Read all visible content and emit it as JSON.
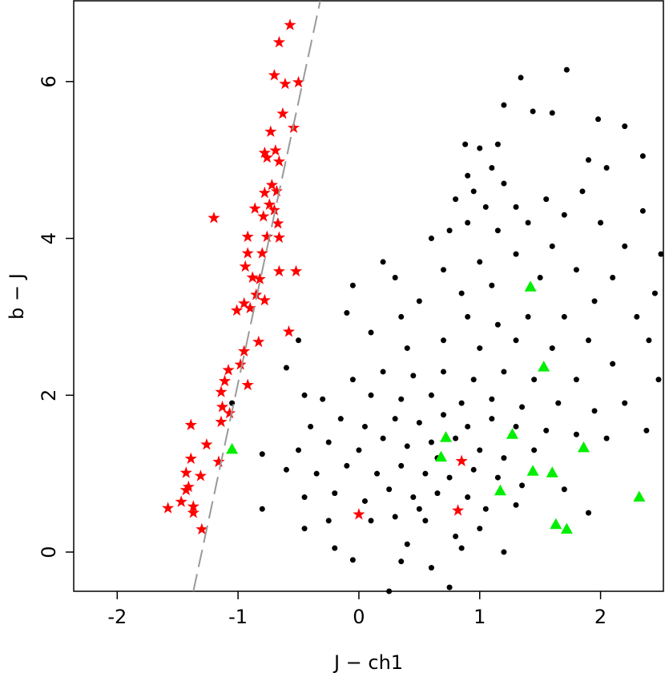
{
  "chart_data": {
    "type": "scatter",
    "x_label": "J − ch1",
    "y_label": "b − J",
    "xlim": [
      -2.36,
      2.52
    ],
    "ylim": [
      -0.5,
      7.03
    ],
    "xticks": [
      -2,
      -1,
      0,
      1,
      2
    ],
    "yticks": [
      0,
      2,
      4,
      6
    ],
    "series": [
      {
        "marker": "circle",
        "color": "#000000",
        "x": [
          1.72,
          1.34,
          1.2,
          1.44,
          1.98,
          2.2,
          1.6,
          2.35,
          0.88,
          1.0,
          1.15,
          1.9,
          2.05,
          2.35,
          2.5,
          2.45,
          2.3,
          2.4,
          2.48,
          2.38,
          0.2,
          0.3,
          -0.05,
          -0.1,
          -0.5,
          -0.6,
          -0.45,
          -0.8,
          -0.8,
          -1.05,
          0.25,
          0.75,
          0.6,
          0.35,
          0.9,
          1.1,
          0.95,
          1.05,
          0.8,
          1.2,
          1.3,
          0.75,
          0.6,
          0.9,
          1.15,
          1.4,
          1.55,
          1.7,
          1.85,
          2.0,
          1.6,
          1.3,
          1.0,
          0.7,
          0.85,
          1.1,
          1.5,
          1.8,
          2.1,
          2.2,
          1.95,
          1.7,
          1.4,
          1.15,
          0.9,
          0.5,
          0.35,
          0.1,
          0.4,
          0.7,
          1.0,
          1.3,
          1.6,
          1.9,
          2.1,
          1.8,
          1.45,
          1.2,
          0.95,
          0.7,
          0.45,
          0.2,
          -0.05,
          -0.3,
          0.1,
          0.35,
          0.6,
          0.85,
          1.1,
          1.35,
          1.65,
          1.95,
          2.2,
          -0.4,
          -0.15,
          0.05,
          0.3,
          0.5,
          0.7,
          0.9,
          1.1,
          1.3,
          1.55,
          1.8,
          2.05,
          -0.5,
          -0.25,
          0.0,
          0.2,
          0.4,
          0.6,
          0.8,
          1.0,
          1.2,
          1.45,
          -0.6,
          -0.35,
          -0.1,
          0.15,
          0.35,
          0.55,
          0.75,
          0.95,
          1.15,
          1.35,
          1.7,
          -0.45,
          -0.2,
          0.05,
          0.25,
          0.45,
          0.65,
          0.9,
          1.05,
          1.3,
          1.9,
          -0.45,
          -0.25,
          0.1,
          0.3,
          0.55,
          0.8,
          1.0,
          -0.2,
          0.4,
          0.85,
          1.2,
          -0.05,
          0.5,
          0.65
        ],
        "y": [
          6.15,
          6.05,
          5.7,
          5.62,
          5.52,
          5.43,
          5.6,
          5.05,
          5.2,
          5.15,
          5.2,
          5.0,
          4.9,
          4.35,
          3.8,
          3.3,
          3.0,
          2.7,
          2.2,
          1.55,
          3.7,
          3.5,
          3.4,
          3.05,
          2.7,
          2.35,
          2.0,
          0.55,
          1.25,
          1.9,
          -0.5,
          -0.45,
          -0.2,
          -0.12,
          4.8,
          4.9,
          4.6,
          4.4,
          4.5,
          4.7,
          4.4,
          4.1,
          4.0,
          4.2,
          4.1,
          4.2,
          4.5,
          4.3,
          4.6,
          4.2,
          3.9,
          3.8,
          3.7,
          3.6,
          3.3,
          3.4,
          3.5,
          3.6,
          3.5,
          3.9,
          3.2,
          3.0,
          3.0,
          2.9,
          3.0,
          3.2,
          3.0,
          2.8,
          2.6,
          2.7,
          2.6,
          2.7,
          2.6,
          2.7,
          2.4,
          2.2,
          2.2,
          2.3,
          2.2,
          2.3,
          2.25,
          2.3,
          2.2,
          1.95,
          2.0,
          1.95,
          2.0,
          1.9,
          1.95,
          1.85,
          1.9,
          1.8,
          1.9,
          1.6,
          1.7,
          1.6,
          1.7,
          1.65,
          1.75,
          1.6,
          1.7,
          1.6,
          1.55,
          1.5,
          1.45,
          1.3,
          1.4,
          1.3,
          1.45,
          1.35,
          1.4,
          1.45,
          1.3,
          1.2,
          1.3,
          1.05,
          1.0,
          1.1,
          1.0,
          1.1,
          1.0,
          0.95,
          1.05,
          0.95,
          0.85,
          0.8,
          0.7,
          0.75,
          0.65,
          0.8,
          0.7,
          0.75,
          0.7,
          0.55,
          0.6,
          0.5,
          0.3,
          0.4,
          0.4,
          0.45,
          0.4,
          0.2,
          0.3,
          0.05,
          0.1,
          0.05,
          0.0,
          -0.1,
          0.55,
          1.2
        ]
      },
      {
        "marker": "star",
        "color": "#ff0000",
        "x": [
          -0.57,
          -0.66,
          -0.7,
          -0.5,
          -0.61,
          -0.63,
          -0.54,
          -0.73,
          -0.69,
          -0.78,
          -0.66,
          -0.76,
          -0.72,
          -0.68,
          -0.78,
          -0.74,
          -0.86,
          -0.7,
          -0.79,
          -0.67,
          -1.2,
          -0.92,
          -0.76,
          -0.66,
          -0.92,
          -0.8,
          -0.66,
          -0.52,
          -0.94,
          -0.88,
          -0.82,
          -0.85,
          -0.95,
          -0.78,
          -1.01,
          -0.9,
          -0.58,
          -0.83,
          -0.95,
          -0.98,
          -1.08,
          -1.11,
          -0.92,
          -1.14,
          -1.13,
          -1.07,
          -1.14,
          -1.39,
          -1.26,
          -1.16,
          -1.39,
          -1.43,
          -1.31,
          -1.41,
          -1.43,
          -1.47,
          -1.37,
          -1.58,
          -1.37,
          -1.3,
          0.0,
          0.82,
          0.85
        ],
        "y": [
          6.72,
          6.5,
          6.08,
          5.99,
          5.97,
          5.59,
          5.41,
          5.36,
          5.12,
          5.09,
          4.98,
          5.03,
          4.68,
          4.6,
          4.58,
          4.43,
          4.38,
          4.36,
          4.28,
          4.19,
          4.26,
          4.02,
          4.02,
          4.01,
          3.81,
          3.81,
          3.58,
          3.58,
          3.64,
          3.5,
          3.48,
          3.28,
          3.17,
          3.21,
          3.08,
          3.11,
          2.81,
          2.68,
          2.56,
          2.39,
          2.32,
          2.18,
          2.13,
          2.04,
          1.85,
          1.77,
          1.66,
          1.62,
          1.37,
          1.15,
          1.19,
          1.01,
          0.97,
          0.83,
          0.79,
          0.64,
          0.58,
          0.56,
          0.5,
          0.29,
          0.48,
          0.53,
          1.16
        ]
      },
      {
        "marker": "triangle",
        "color": "#00ee00",
        "x": [
          -1.05,
          1.42,
          1.53,
          0.72,
          1.27,
          0.68,
          1.86,
          1.44,
          1.6,
          1.17,
          2.32,
          1.63,
          1.72
        ],
        "y": [
          1.31,
          3.38,
          2.36,
          1.46,
          1.5,
          1.21,
          1.33,
          1.03,
          1.01,
          0.78,
          0.7,
          0.35,
          0.29
        ]
      },
      {
        "marker": "line",
        "style": "dashed",
        "color": "#999999",
        "x": [
          -1.37,
          -0.32
        ],
        "y": [
          -0.5,
          7.03
        ]
      }
    ]
  }
}
